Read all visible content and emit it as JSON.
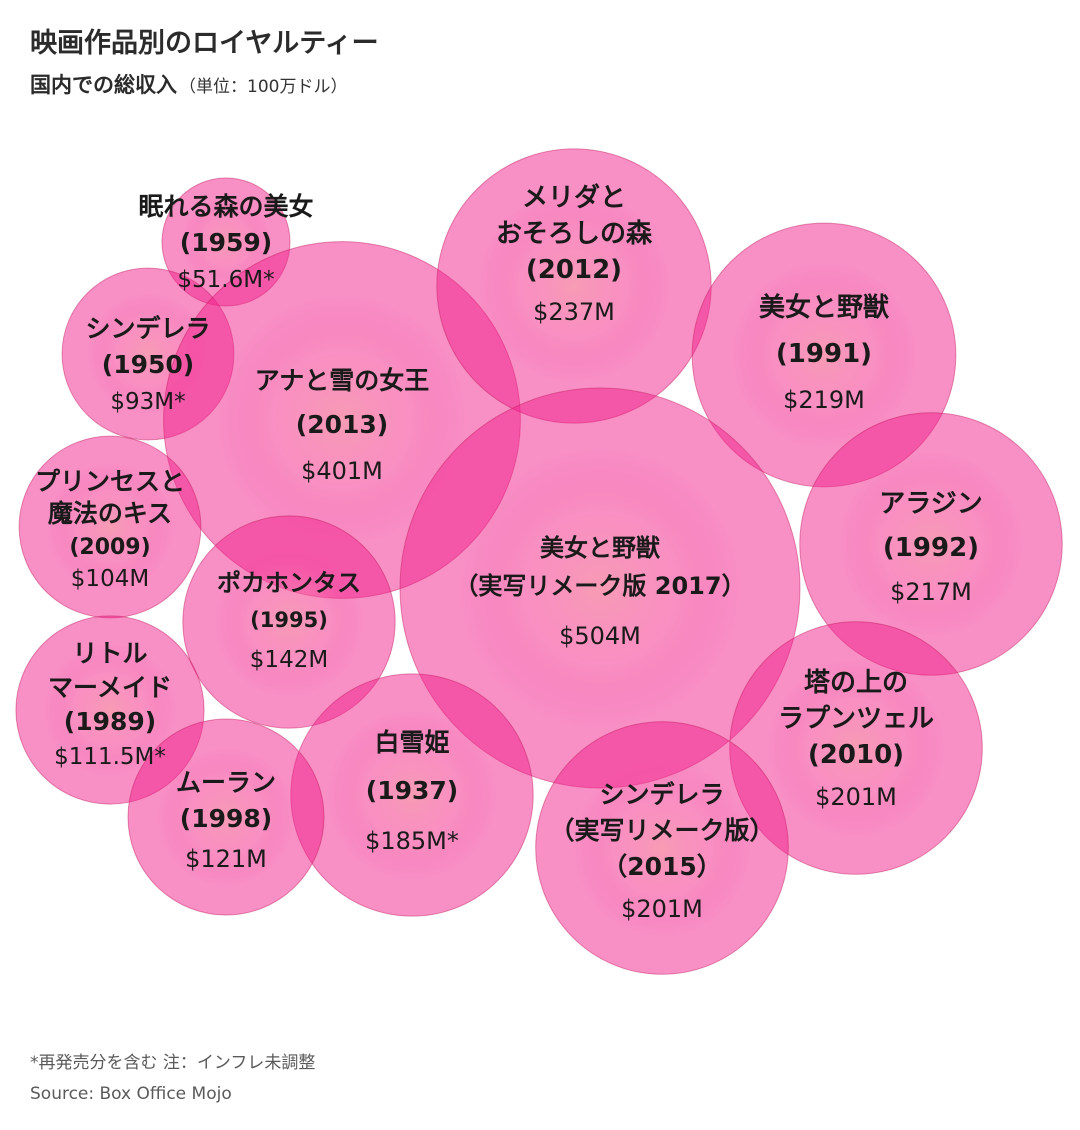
{
  "header": {
    "title": "映画作品別のロイヤルティー",
    "subtitle": "国内での総収入",
    "unit": "（単位：100万ドル）"
  },
  "colors": {
    "bubble_fill": "#f2208c",
    "bubble_fill_opacity": 0.5,
    "text": "#1a1a1a"
  },
  "chart_data": {
    "type": "bubble",
    "title": "映画作品別のロイヤルティー",
    "subtitle": "国内での総収入（単位：100万ドル）",
    "series": [
      {
        "name_lines": [
          "眠れる森の美女"
        ],
        "year": "(1959)",
        "value": 51.6,
        "value_label": "$51.6M*"
      },
      {
        "name_lines": [
          "シンデレラ"
        ],
        "year": "(1950)",
        "value": 93,
        "value_label": "$93M*"
      },
      {
        "name_lines": [
          "アナと雪の女王"
        ],
        "year": "(2013)",
        "value": 401,
        "value_label": "$401M"
      },
      {
        "name_lines": [
          "メリダと",
          "おそろしの森"
        ],
        "year": "(2012)",
        "value": 237,
        "value_label": "$237M"
      },
      {
        "name_lines": [
          "美女と野獣"
        ],
        "year": "(1991)",
        "value": 219,
        "value_label": "$219M"
      },
      {
        "name_lines": [
          "プリンセスと",
          "魔法のキス"
        ],
        "year": "(2009)",
        "value": 104,
        "value_label": "$104M"
      },
      {
        "name_lines": [
          "美女と野獣"
        ],
        "year": "（実写リメーク版 2017）",
        "value": 504,
        "value_label": "$504M"
      },
      {
        "name_lines": [
          "アラジン"
        ],
        "year": "(1992)",
        "value": 217,
        "value_label": "$217M"
      },
      {
        "name_lines": [
          "ポカホンタス"
        ],
        "year": "(1995)",
        "value": 142,
        "value_label": "$142M"
      },
      {
        "name_lines": [
          "リトル",
          "マーメイド"
        ],
        "year": "(1989)",
        "value": 111.5,
        "value_label": "$111.5M*"
      },
      {
        "name_lines": [
          "塔の上の",
          "ラプンツェル"
        ],
        "year": "(2010)",
        "value": 201,
        "value_label": "$201M"
      },
      {
        "name_lines": [
          "白雪姫"
        ],
        "year": "(1937)",
        "value": 185,
        "value_label": "$185M*"
      },
      {
        "name_lines": [
          "ムーラン"
        ],
        "year": "(1998)",
        "value": 121,
        "value_label": "$121M"
      },
      {
        "name_lines": [
          "シンデレラ",
          "（実写リメーク版）"
        ],
        "year": "（2015）",
        "value": 201,
        "value_label": "$201M"
      }
    ]
  },
  "footer": {
    "note": "*再発売分を含む  注：インフレ未調整",
    "source": "Source: Box Office Mojo"
  }
}
